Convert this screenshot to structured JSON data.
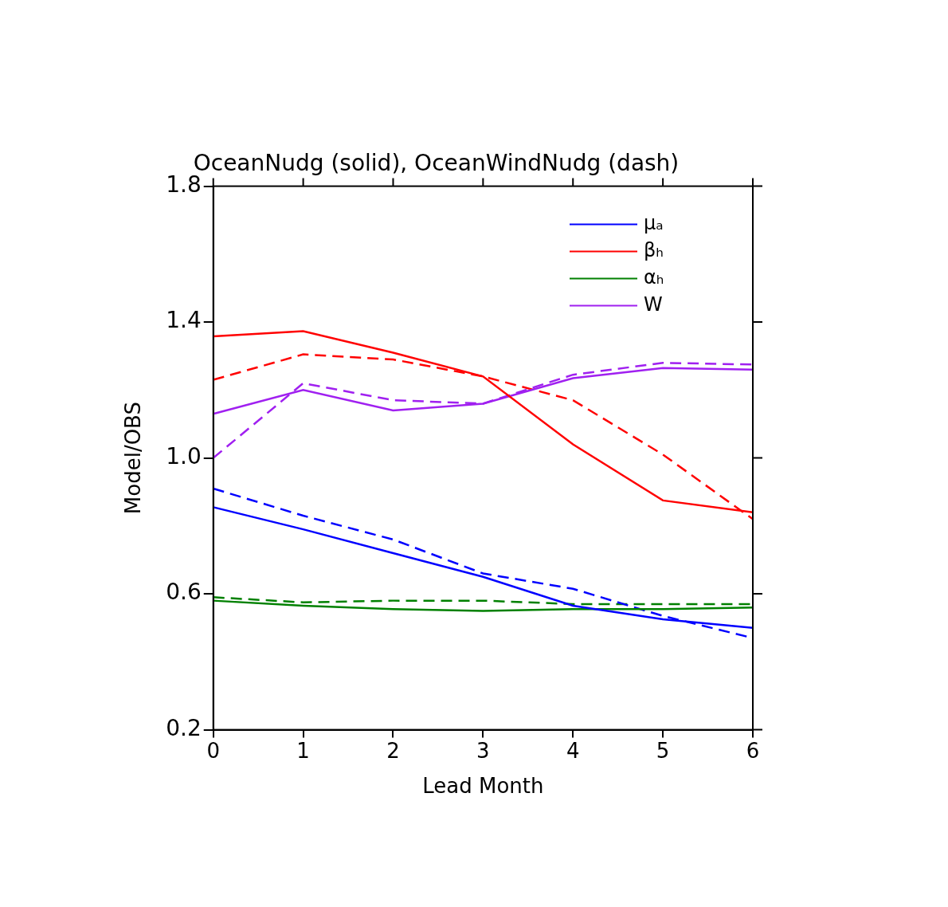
{
  "chart_data": {
    "type": "line",
    "title": "OceanNudg (solid), OceanWindNudg (dash)",
    "xlabel": "Lead Month",
    "ylabel": "Model/OBS",
    "x": [
      0,
      1,
      2,
      3,
      4,
      5,
      6
    ],
    "xlim": [
      0,
      6
    ],
    "xticks": [
      0,
      1,
      2,
      3,
      4,
      5,
      6
    ],
    "ylim": [
      0.2,
      1.8
    ],
    "yticks": [
      0.2,
      0.6,
      {
        "value": 1,
        "label": "1.0"
      },
      1.4,
      1.8
    ],
    "grid": false,
    "legend": "upper right",
    "series": [
      {
        "name": "μₐ",
        "color": "#0000ff",
        "line_style": "solid",
        "marker": "none",
        "values": [
          0.855,
          0.79,
          0.72,
          0.65,
          0.565,
          0.525,
          0.5
        ]
      },
      {
        "name": "βₕ",
        "color": "#ff0000",
        "line_style": "solid",
        "marker": "none",
        "values": [
          1.358,
          1.373,
          1.31,
          1.24,
          1.04,
          0.875,
          0.84
        ]
      },
      {
        "name": "αₕ",
        "color": "#008000",
        "line_style": "solid",
        "marker": "none",
        "values": [
          0.58,
          0.565,
          0.555,
          0.55,
          0.555,
          0.555,
          0.56
        ]
      },
      {
        "name": "W",
        "color": "#a020f0",
        "line_style": "solid",
        "marker": "none",
        "values": [
          1.13,
          1.2,
          1.14,
          1.16,
          1.235,
          1.265,
          1.26
        ]
      },
      {
        "name": "μₐ",
        "color": "#0000ff",
        "line_style": "dashed",
        "marker": "none",
        "values": [
          0.91,
          0.83,
          0.76,
          0.66,
          0.615,
          0.535,
          0.47
        ]
      },
      {
        "name": "βₕ",
        "color": "#ff0000",
        "line_style": "dashed",
        "marker": "none",
        "values": [
          1.23,
          1.305,
          1.29,
          1.24,
          1.17,
          1.01,
          0.82
        ]
      },
      {
        "name": "αₕ",
        "color": "#008000",
        "line_style": "dashed",
        "marker": "none",
        "values": [
          0.59,
          0.575,
          0.58,
          0.58,
          0.57,
          0.57,
          0.57
        ]
      },
      {
        "name": "W",
        "color": "#a020f0",
        "line_style": "dashed",
        "marker": "none",
        "values": [
          1.0,
          1.22,
          1.17,
          1.16,
          1.245,
          1.28,
          1.275
        ]
      }
    ]
  }
}
